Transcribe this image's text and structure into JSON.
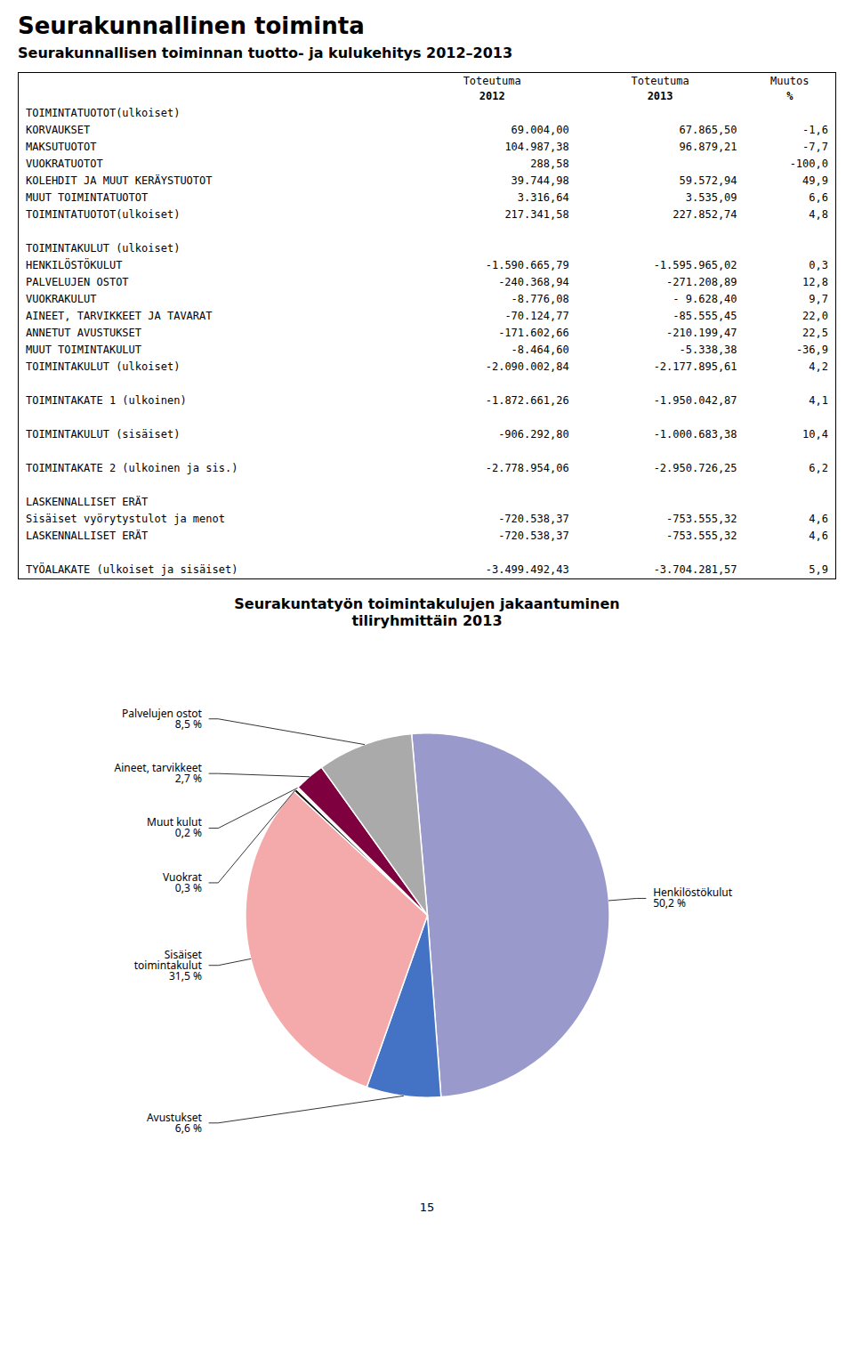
{
  "chart_data": [
    {
      "type": "table",
      "title": "Seurakunnallinen toiminta",
      "subtitle": "Seurakunnallisen toiminnan tuotto- ja kulukehitys 2012–2013",
      "columns": [
        "Toteutuma\n2012",
        "Toteutuma\n2013",
        "Muutos\n%"
      ],
      "rows": [
        [
          "TOIMINTATUOTOT(ulkoiset)",
          null,
          null,
          null
        ],
        [
          "KORVAUKSET",
          "69.004,00",
          "67.865,50",
          "-1,6"
        ],
        [
          "MAKSUTUOTOT",
          "104.987,38",
          "96.879,21",
          "-7,7"
        ],
        [
          "VUOKRATUOTOT",
          "288,58",
          null,
          "-100,0"
        ],
        [
          "KOLEHDIT JA MUUT KERÄYSTUOTOT",
          "39.744,98",
          "59.572,94",
          "49,9"
        ],
        [
          "MUUT TOIMINTATUOTOT",
          "3.316,64",
          "3.535,09",
          "6,6"
        ],
        [
          "TOIMINTATUOTOT(ulkoiset)",
          "217.341,58",
          "227.852,74",
          "4,8"
        ],
        null,
        [
          "TOIMINTAKULUT (ulkoiset)",
          null,
          null,
          null
        ],
        [
          "HENKILÖSTÖKULUT",
          "-1.590.665,79",
          "-1.595.965,02",
          "0,3"
        ],
        [
          "PALVELUJEN OSTOT",
          "-240.368,94",
          "-271.208,89",
          "12,8"
        ],
        [
          "VUOKRAKULUT",
          "-8.776,08",
          "- 9.628,40",
          "9,7"
        ],
        [
          "AINEET, TARVIKKEET JA TAVARAT",
          "-70.124,77",
          "-85.555,45",
          "22,0"
        ],
        [
          "ANNETUT AVUSTUKSET",
          "-171.602,66",
          "-210.199,47",
          "22,5"
        ],
        [
          "MUUT TOIMINTAKULUT",
          "-8.464,60",
          "-5.338,38",
          "-36,9"
        ],
        [
          "TOIMINTAKULUT (ulkoiset)",
          "-2.090.002,84",
          "-2.177.895,61",
          "4,2"
        ],
        null,
        [
          "TOIMINTAKATE 1 (ulkoinen)",
          "-1.872.661,26",
          "-1.950.042,87",
          "4,1"
        ],
        null,
        [
          "TOIMINTAKULUT (sisäiset)",
          "-906.292,80",
          "-1.000.683,38",
          "10,4"
        ],
        null,
        [
          "TOIMINTAKATE 2 (ulkoinen ja sis.)",
          "-2.778.954,06",
          "-2.950.726,25",
          "6,2"
        ],
        null,
        [
          "LASKENNALLISET ERÄT",
          null,
          null,
          null
        ],
        [
          "Sisäiset vyörytystulot ja menot",
          "-720.538,37",
          "-753.555,32",
          "4,6"
        ],
        [
          "LASKENNALLISET ERÄT",
          "-720.538,37",
          "-753.555,32",
          "4,6"
        ],
        null,
        [
          "TYÖALAKATE (ulkoiset ja sisäiset)",
          "-3.499.492,43",
          "-3.704.281,57",
          "5,9"
        ]
      ]
    },
    {
      "type": "pie",
      "title": "Seurakuntatyön toimintakulujen jakaantuminen\ntiliryhmittäin 2013",
      "categories": [
        "Henkilöstökulut",
        "Avustukset",
        "Sisäiset\ntoimintakulut",
        "Vuokrat",
        "Muut kulut",
        "Aineet, tarvikkeet",
        "Palvelujen ostot"
      ],
      "values": [
        50.2,
        6.6,
        31.5,
        0.3,
        0.2,
        2.7,
        8.5
      ],
      "value_labels": [
        "50,2 %",
        "6,6 %",
        "31,5 %",
        "0,3 %",
        "0,2 %",
        "2,7 %",
        "8,5 %"
      ],
      "colors": [
        "#9999cc",
        "#4472c4",
        "#f4aaaa",
        "#111111",
        "#ffffcc",
        "#7f003f",
        "#aaaaaa"
      ],
      "data_labels": true,
      "annotations": [
        "15"
      ]
    }
  ]
}
